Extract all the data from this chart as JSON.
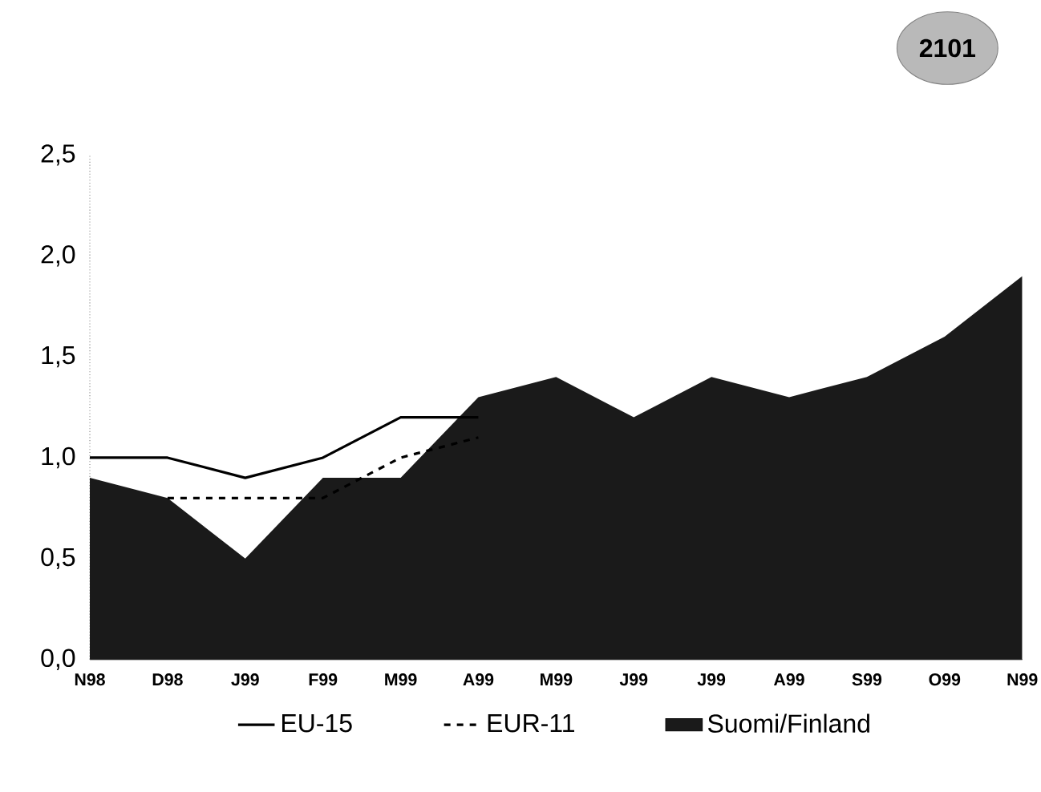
{
  "chart_data": {
    "type": "line",
    "categories": [
      "N98",
      "D98",
      "J99",
      "F99",
      "M99",
      "A99",
      "M99",
      "J99",
      "J99",
      "A99",
      "S99",
      "O99",
      "N99"
    ],
    "series": [
      {
        "name": "EU-15",
        "color": "#000000",
        "line_style": "solid",
        "values": [
          1.0,
          1.0,
          0.9,
          1.0,
          1.2,
          1.2,
          null,
          null,
          null,
          null,
          null,
          null,
          null
        ]
      },
      {
        "name": "EUR-11",
        "color": "#000000",
        "line_style": "dashed",
        "values": [
          null,
          0.8,
          0.8,
          0.8,
          1.0,
          1.1,
          null,
          null,
          null,
          null,
          null,
          null,
          null
        ]
      },
      {
        "name": "Suomi/Finland",
        "type": "area",
        "color": "#1a1a1a",
        "values": [
          0.9,
          0.8,
          0.5,
          0.9,
          0.9,
          1.3,
          1.4,
          1.2,
          1.4,
          1.3,
          1.4,
          1.6,
          1.9
        ]
      }
    ],
    "ylim": [
      0,
      2.5
    ],
    "yticks": [
      {
        "value": 0,
        "label": "0,0"
      },
      {
        "value": 0.5,
        "label": "0,5"
      },
      {
        "value": 1,
        "label": "1,0"
      },
      {
        "value": 1.5,
        "label": "1,5"
      },
      {
        "value": 2,
        "label": "2,0"
      },
      {
        "value": 2.5,
        "label": "2,5"
      }
    ],
    "legend": "bottom",
    "marker": "none",
    "annotations": [
      "2101"
    ]
  }
}
